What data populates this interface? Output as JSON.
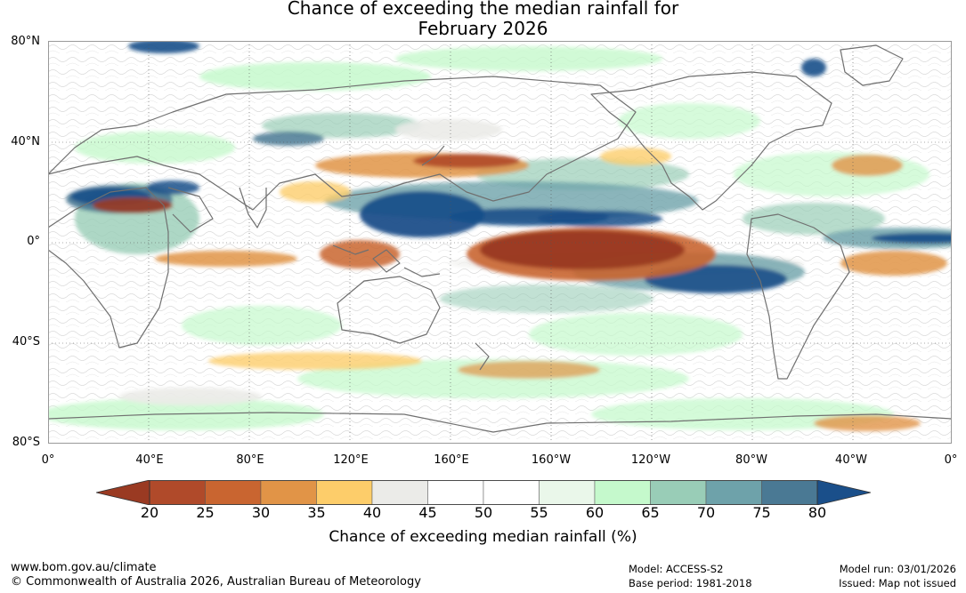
{
  "title_line1": "Chance of exceeding the median rainfall for",
  "title_line2": "February 2026",
  "map": {
    "lat_labels": [
      "80°N",
      "40°N",
      "0°",
      "40°S",
      "80°S"
    ],
    "lon_labels": [
      "0°",
      "40°E",
      "80°E",
      "120°E",
      "160°E",
      "160°W",
      "120°W",
      "80°W",
      "40°W",
      "0°"
    ],
    "features": [
      "Strong below-median signal (red) over the central equatorial Pacific",
      "Strong above-median signal (blue) over the western Pacific and Maritime Continent",
      "Blue band over the equatorial Atlantic"
    ]
  },
  "colorbar": {
    "ticks": [
      "20",
      "25",
      "30",
      "35",
      "40",
      "45",
      "50",
      "55",
      "60",
      "65",
      "70",
      "75",
      "80"
    ],
    "colors": [
      "#9a3a22",
      "#b04a2a",
      "#c96530",
      "#e19447",
      "#fdcd6a",
      "#ebebe8",
      "#ffffff",
      "#ffffff",
      "#eaf7ea",
      "#c5f9cc",
      "#99cdb7",
      "#6ea2aa",
      "#4a7994",
      "#1a4f8a"
    ],
    "label": "Chance of exceeding median rainfall (%)"
  },
  "footer": {
    "website": "www.bom.gov.au/climate",
    "copyright": "© Commonwealth of Australia 2026, Australian Bureau of Meteorology",
    "model": "Model: ACCESS-S2",
    "base_period": "Base period: 1981-2018",
    "model_run": "Model run: 03/01/2026",
    "issued": "Issued: Map not issued"
  }
}
